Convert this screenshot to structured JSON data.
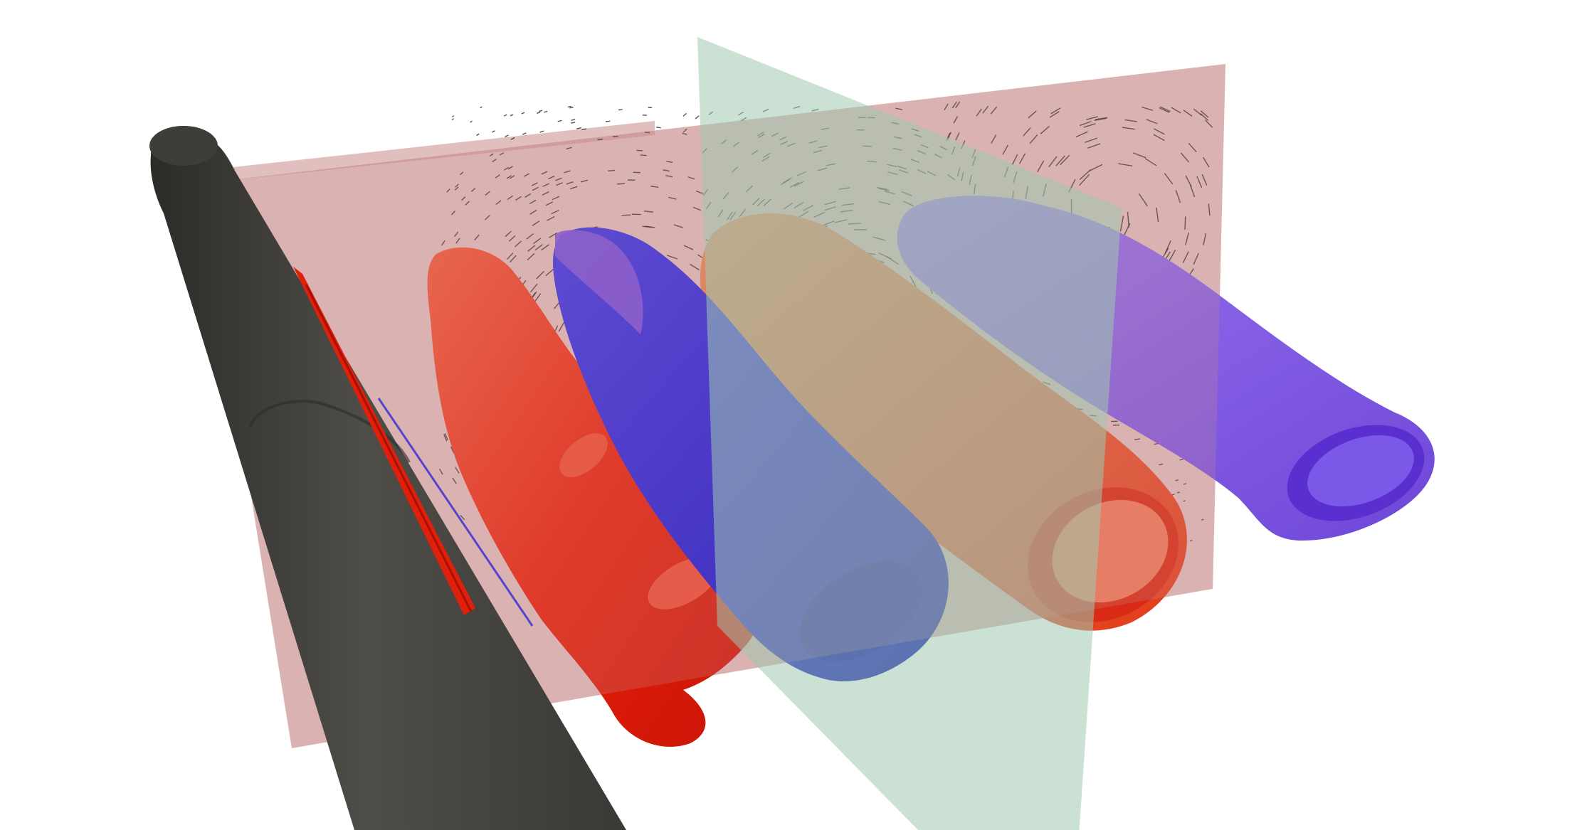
{
  "scene": {
    "background": "#ffffff",
    "colors": {
      "cylinder": "#4a4944",
      "cylinder_shade": "#2e2d2a",
      "red_plane": "#c98a8a",
      "green_plane": "#9fc8b0",
      "tube_red": "#e8200a",
      "tube_red_light": "#f06a4c",
      "tube_blue": "#1a18d8",
      "tube_purple": "#7a52e0",
      "tube_orange": "#e0703c",
      "vectors": "#1b1b1b"
    },
    "objects": [
      "gray-cylinder",
      "red-slice-plane",
      "green-slice-plane",
      "red-vortex-tube-1",
      "blue-vortex-tube-1",
      "red-vortex-tube-2",
      "purple-vortex-tube-2",
      "velocity-vector-field"
    ]
  }
}
